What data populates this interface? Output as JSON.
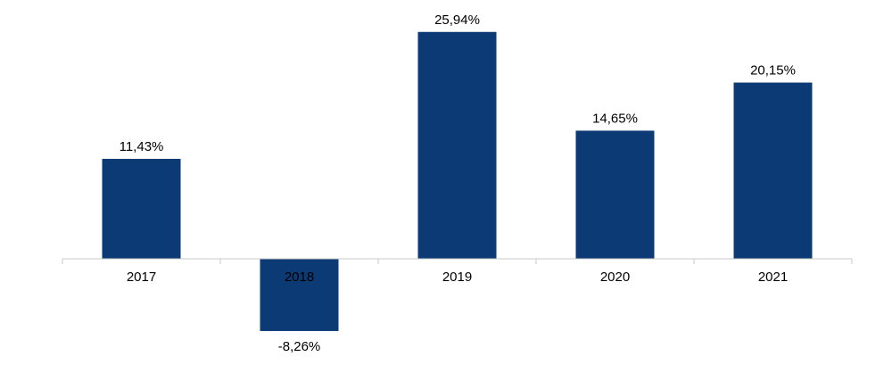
{
  "chart_data": {
    "type": "bar",
    "categories": [
      "2017",
      "2018",
      "2019",
      "2020",
      "2021"
    ],
    "values": [
      11.43,
      -8.26,
      25.94,
      14.65,
      20.15
    ],
    "labels": [
      "11,43%",
      "-8,26%",
      "25,94%",
      "14,65%",
      "20,15%"
    ],
    "bar_color": "#0B3A75",
    "title": "",
    "xlabel": "",
    "ylabel": "",
    "grid": false,
    "legend": "none"
  }
}
